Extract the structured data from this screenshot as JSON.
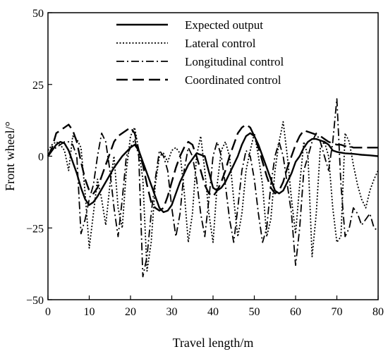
{
  "chart_data": {
    "type": "line",
    "xlabel": "Travel length/m",
    "ylabel": "Front wheel/°",
    "xlim": [
      0,
      80
    ],
    "ylim": [
      -50,
      50
    ],
    "x_ticks": [
      "0",
      "10",
      "20",
      "30",
      "40",
      "50",
      "60",
      "70",
      "80"
    ],
    "y_ticks": [
      "50",
      "25",
      "0",
      "−25",
      "−50"
    ],
    "grid": false,
    "legend_position": "top-center",
    "series": [
      {
        "name": "Expected output",
        "style": "solid",
        "x": [
          0,
          1,
          2,
          3,
          4,
          5,
          6,
          7,
          8,
          9,
          10,
          11,
          12,
          14,
          16,
          18,
          20,
          21,
          22,
          23,
          24,
          25,
          26,
          27,
          28,
          29,
          30,
          31,
          32,
          34,
          36,
          38,
          40,
          41,
          42,
          43,
          44,
          45,
          46,
          47,
          48,
          49,
          50,
          51,
          52,
          53,
          54,
          55,
          56,
          57,
          58,
          59,
          60,
          61,
          62,
          63,
          64,
          65,
          66,
          67,
          68,
          69,
          70,
          72,
          74,
          76,
          78,
          80
        ],
        "y": [
          0,
          2,
          4,
          5,
          4.5,
          2,
          -2,
          -6,
          -11,
          -15,
          -17,
          -16,
          -14,
          -9,
          -4,
          0,
          3,
          4,
          2,
          -2,
          -6,
          -10,
          -14,
          -18,
          -19.5,
          -19,
          -17,
          -13,
          -9,
          -3,
          1,
          0,
          -11,
          -12,
          -11,
          -9,
          -6,
          -3,
          0,
          4,
          7,
          8,
          7,
          4,
          0,
          -4,
          -8,
          -12,
          -13,
          -12,
          -9,
          -6,
          -2,
          0,
          3,
          5,
          6,
          6,
          5.5,
          5,
          4,
          2,
          1.5,
          1,
          0.8,
          0.5,
          0.3,
          0
        ]
      },
      {
        "name": "Lateral control",
        "style": "dotted",
        "x": [
          0,
          1,
          2,
          3,
          4,
          5,
          6,
          7,
          8,
          9,
          10,
          11,
          12,
          13,
          14,
          15,
          16,
          17,
          18,
          19,
          20,
          21,
          22,
          23,
          24,
          25,
          26,
          27,
          28,
          29,
          30,
          31,
          32,
          33,
          34,
          35,
          36,
          37,
          38,
          39,
          40,
          41,
          42,
          43,
          44,
          45,
          46,
          47,
          48,
          49,
          50,
          51,
          52,
          53,
          54,
          55,
          56,
          57,
          58,
          59,
          60,
          61,
          62,
          63,
          64,
          65,
          66,
          67,
          68,
          69,
          70,
          71,
          72,
          73,
          74,
          75,
          76,
          77,
          78,
          79,
          80
        ],
        "y": [
          2,
          4,
          5,
          4,
          2,
          -5,
          7,
          6,
          3,
          -13,
          -32,
          -20,
          -8,
          -15,
          -24,
          -10,
          0,
          -18,
          -25,
          -5,
          7,
          10,
          2,
          -8,
          -40,
          -30,
          -10,
          0,
          1,
          -2,
          2,
          3,
          1,
          -12,
          -30,
          -20,
          0,
          7,
          -5,
          -20,
          -30,
          -10,
          2,
          5,
          0,
          -15,
          -28,
          -20,
          -5,
          2,
          8,
          0,
          -10,
          -28,
          -22,
          -5,
          5,
          12,
          0,
          -15,
          -27,
          -10,
          5,
          0,
          -35,
          -20,
          3,
          5,
          0,
          -18,
          -30,
          -28,
          8,
          5,
          -3,
          -10,
          -15,
          -18,
          -12,
          -8,
          -5
        ]
      },
      {
        "name": "Longitudinal control",
        "style": "dash-dot",
        "x": [
          0,
          1,
          2,
          3,
          4,
          5,
          6,
          7,
          8,
          9,
          10,
          11,
          12,
          13,
          14,
          15,
          16,
          17,
          18,
          19,
          20,
          21,
          22,
          23,
          24,
          25,
          26,
          27,
          28,
          29,
          30,
          31,
          32,
          33,
          34,
          35,
          36,
          37,
          38,
          39,
          40,
          41,
          42,
          43,
          44,
          45,
          46,
          47,
          48,
          49,
          50,
          51,
          52,
          53,
          54,
          55,
          56,
          57,
          58,
          59,
          60,
          61,
          62,
          63,
          64,
          65,
          66,
          67,
          68,
          69,
          70,
          71,
          72,
          73,
          74,
          75,
          76,
          77,
          78,
          79,
          80
        ],
        "y": [
          0,
          2,
          3,
          4,
          5,
          5,
          4,
          0,
          -27,
          -22,
          -15,
          -10,
          0,
          8,
          5,
          -5,
          -18,
          -28,
          -15,
          0,
          3,
          6,
          0,
          -42,
          -35,
          -20,
          -8,
          2,
          0,
          -5,
          -18,
          -28,
          -20,
          -5,
          3,
          0,
          -8,
          -20,
          -28,
          -15,
          0,
          5,
          0,
          -10,
          -22,
          -30,
          -18,
          -5,
          2,
          0,
          -8,
          -20,
          -30,
          -25,
          -10,
          0,
          5,
          0,
          -10,
          -20,
          -38,
          -25,
          -5,
          0,
          5,
          8,
          5,
          0,
          -5,
          5,
          20,
          -10,
          -28,
          -25,
          -18,
          -20,
          -24,
          -22,
          -20,
          -25,
          -26
        ]
      },
      {
        "name": "Coordinated control",
        "style": "long-dash",
        "x": [
          0,
          1,
          2,
          3,
          4,
          5,
          6,
          7,
          8,
          9,
          10,
          11,
          12,
          13,
          14,
          15,
          16,
          17,
          18,
          19,
          20,
          21,
          22,
          23,
          24,
          25,
          26,
          27,
          28,
          29,
          30,
          31,
          32,
          33,
          34,
          35,
          36,
          37,
          38,
          39,
          40,
          41,
          42,
          43,
          44,
          45,
          46,
          47,
          48,
          49,
          50,
          51,
          52,
          53,
          54,
          55,
          56,
          57,
          58,
          59,
          60,
          61,
          62,
          63,
          64,
          65,
          66,
          67,
          68,
          69,
          70,
          71,
          72,
          73,
          74,
          75,
          76,
          77,
          78,
          79,
          80
        ],
        "y": [
          0,
          3,
          8,
          9,
          10,
          11,
          9,
          5,
          -2,
          -8,
          -12,
          -13,
          -11,
          -7,
          -3,
          1,
          5,
          7,
          8,
          9,
          10,
          8,
          2,
          -3,
          -10,
          -16,
          -18,
          -19,
          -18,
          -14,
          -9,
          -4,
          0,
          3,
          5,
          4,
          0,
          -5,
          -10,
          -13,
          -14,
          -12,
          -9,
          -5,
          0,
          4,
          8,
          10,
          11,
          10,
          7,
          3,
          -2,
          -7,
          -11,
          -13,
          -12,
          -9,
          -4,
          0,
          4,
          7,
          9,
          8.5,
          8,
          7.5,
          7,
          6,
          5,
          4.5,
          4,
          4,
          3.5,
          3.5,
          3,
          3,
          3,
          3,
          3,
          3,
          3
        ]
      }
    ]
  }
}
